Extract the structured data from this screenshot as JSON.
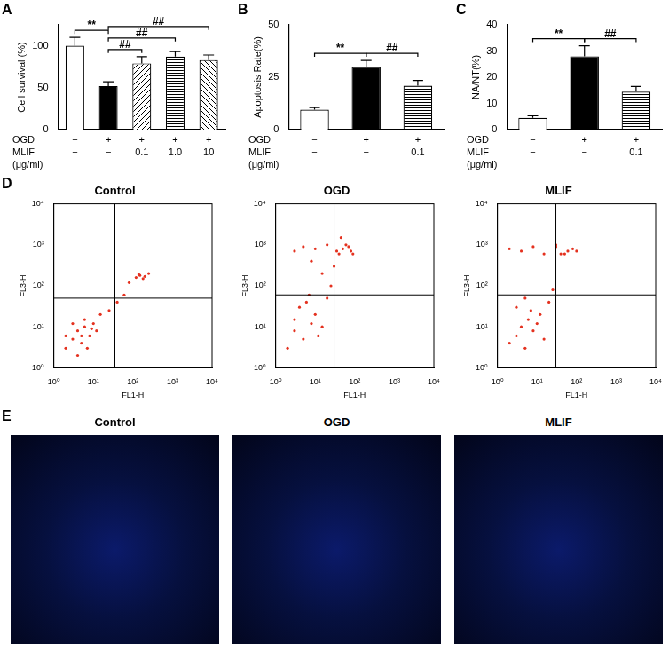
{
  "chart_data": [
    {
      "panel": "A",
      "type": "bar",
      "y_label": "Cell survival (%)",
      "x_rows": [
        {
          "label": "OGD",
          "values": [
            "−",
            "+",
            "+",
            "+",
            "+"
          ]
        },
        {
          "label": "MLIF",
          "values": [
            "−",
            "−",
            "0.1",
            "1.0",
            "10"
          ]
        }
      ],
      "x_unit": "(μg/ml)",
      "values": [
        100,
        52,
        79,
        87,
        83
      ],
      "errors": [
        10,
        5,
        8,
        6,
        6
      ],
      "colors": [
        "#ffffff",
        "#000000",
        "#ffffff",
        "#ffffff",
        "#ffffff"
      ],
      "ylim": [
        0,
        125
      ],
      "yticks": [
        0,
        50,
        100
      ],
      "annotations": [
        {
          "from": 0,
          "to": 1,
          "label": "**"
        },
        {
          "from": 1,
          "to": 2,
          "label": "##"
        },
        {
          "from": 1,
          "to": 3,
          "label": "##"
        },
        {
          "from": 1,
          "to": 4,
          "label": "##"
        }
      ]
    },
    {
      "panel": "B",
      "type": "bar",
      "y_label": "Apoptosis Rate(%)",
      "x_rows": [
        {
          "label": "OGD",
          "values": [
            "−",
            "+",
            "+"
          ]
        },
        {
          "label": "MLIF",
          "values": [
            "−",
            "−",
            "0.1"
          ]
        }
      ],
      "x_unit": "(μg/ml)",
      "values": [
        9.5,
        30,
        21
      ],
      "errors": [
        1,
        3,
        2.5
      ],
      "colors": [
        "#ffffff",
        "#000000",
        "#ffffff"
      ],
      "ylim": [
        0,
        50
      ],
      "yticks": [
        0,
        25,
        50
      ],
      "annotations": [
        {
          "from": 0,
          "to": 1,
          "label": "**"
        },
        {
          "from": 1,
          "to": 2,
          "label": "##"
        }
      ]
    },
    {
      "panel": "C",
      "type": "bar",
      "y_label": "NA/NT(%)",
      "x_rows": [
        {
          "label": "OGD",
          "values": [
            "−",
            "+",
            "+"
          ]
        },
        {
          "label": "MLIF",
          "values": [
            "−",
            "−",
            "0.1"
          ]
        }
      ],
      "x_unit": "(μg/ml)",
      "values": [
        4.5,
        28,
        14.5
      ],
      "errors": [
        0.8,
        4,
        2
      ],
      "colors": [
        "#ffffff",
        "#000000",
        "#ffffff"
      ],
      "ylim": [
        0,
        40
      ],
      "yticks": [
        0,
        10,
        20,
        30,
        40
      ],
      "annotations": [
        {
          "from": 0,
          "to": 1,
          "label": "**"
        },
        {
          "from": 1,
          "to": 2,
          "label": "##"
        }
      ]
    },
    {
      "panel": "D",
      "type": "scatter",
      "title": "Control",
      "x_label": "FL1-H",
      "y_label": "FL3-H",
      "log": true,
      "color": "#e4311f",
      "xlim": [
        1,
        10000
      ],
      "ylim": [
        1,
        10000
      ],
      "xticks": [
        {
          "value": 1,
          "label": "10⁰"
        },
        {
          "value": 10,
          "label": "10¹"
        },
        {
          "value": 100,
          "label": "10²"
        },
        {
          "value": 1000,
          "label": "10³"
        },
        {
          "value": 10000,
          "label": "10⁴"
        }
      ],
      "yticks": [
        {
          "value": 1,
          "label": "10⁰"
        },
        {
          "value": 10,
          "label": "10¹"
        },
        {
          "value": 100,
          "label": "10²"
        },
        {
          "value": 1000,
          "label": "10³"
        },
        {
          "value": 10000,
          "label": "10⁴"
        }
      ],
      "quadrant": {
        "x": 35,
        "y": 50
      },
      "x": [
        2,
        3,
        4,
        5,
        6,
        8,
        10,
        3,
        2,
        7,
        12,
        4,
        5,
        6,
        9,
        15,
        25,
        40,
        60,
        80,
        120,
        150,
        200,
        250,
        180,
        140
      ],
      "values": [
        3,
        5,
        8,
        4,
        10,
        6,
        12,
        12,
        6,
        3,
        8,
        2,
        6,
        15,
        9,
        20,
        25,
        40,
        60,
        120,
        160,
        180,
        170,
        200,
        150,
        190
      ]
    },
    {
      "panel": "",
      "type": "scatter",
      "title": "OGD",
      "x_label": "FL1-H",
      "y_label": "FL3-H",
      "log": true,
      "color": "#e4311f",
      "xlim": [
        1,
        10000
      ],
      "ylim": [
        1,
        10000
      ],
      "xticks": [
        {
          "value": 1,
          "label": "10⁰"
        },
        {
          "value": 10,
          "label": "10¹"
        },
        {
          "value": 100,
          "label": "10²"
        },
        {
          "value": 1000,
          "label": "10³"
        },
        {
          "value": 10000,
          "label": "10⁴"
        }
      ],
      "yticks": [
        {
          "value": 1,
          "label": "10⁰"
        },
        {
          "value": 10,
          "label": "10¹"
        },
        {
          "value": 100,
          "label": "10²"
        },
        {
          "value": 1000,
          "label": "10³"
        },
        {
          "value": 10000,
          "label": "10⁴"
        }
      ],
      "quadrant": {
        "x": 30,
        "y": 60
      },
      "x": [
        2,
        3,
        5,
        8,
        10,
        15,
        4,
        6,
        12,
        20,
        3,
        7,
        25,
        30,
        40,
        50,
        60,
        80,
        45,
        70,
        35,
        90,
        3,
        5,
        10,
        20,
        8,
        15
      ],
      "values": [
        3,
        8,
        5,
        12,
        20,
        10,
        30,
        40,
        6,
        50,
        15,
        60,
        100,
        300,
        600,
        800,
        1000,
        700,
        1500,
        900,
        700,
        600,
        700,
        900,
        800,
        1000,
        400,
        200
      ]
    },
    {
      "panel": "",
      "type": "scatter",
      "title": "MLIF",
      "x_label": "FL1-H",
      "y_label": "FL3-H",
      "log": true,
      "color": "#e4311f",
      "xlim": [
        1,
        10000
      ],
      "ylim": [
        1,
        10000
      ],
      "xticks": [
        {
          "value": 1,
          "label": "10⁰"
        },
        {
          "value": 10,
          "label": "10¹"
        },
        {
          "value": 100,
          "label": "10²"
        },
        {
          "value": 1000,
          "label": "10³"
        },
        {
          "value": 10000,
          "label": "10⁴"
        }
      ],
      "yticks": [
        {
          "value": 1,
          "label": "10⁰"
        },
        {
          "value": 10,
          "label": "10¹"
        },
        {
          "value": 100,
          "label": "10²"
        },
        {
          "value": 1000,
          "label": "10³"
        },
        {
          "value": 10000,
          "label": "10⁴"
        }
      ],
      "quadrant": {
        "x": 30,
        "y": 60
      },
      "x": [
        2,
        3,
        4,
        5,
        6,
        8,
        10,
        12,
        15,
        3,
        5,
        7,
        20,
        25,
        40,
        60,
        80,
        30,
        50,
        2,
        4,
        8,
        15,
        30,
        100
      ],
      "values": [
        4,
        6,
        10,
        3,
        15,
        8,
        12,
        20,
        5,
        30,
        50,
        25,
        40,
        80,
        600,
        700,
        800,
        1000,
        600,
        800,
        700,
        900,
        600,
        900,
        700
      ]
    }
  ],
  "images": {
    "panel": "E",
    "titles": [
      "Control",
      "OGD",
      "MLIF"
    ]
  }
}
